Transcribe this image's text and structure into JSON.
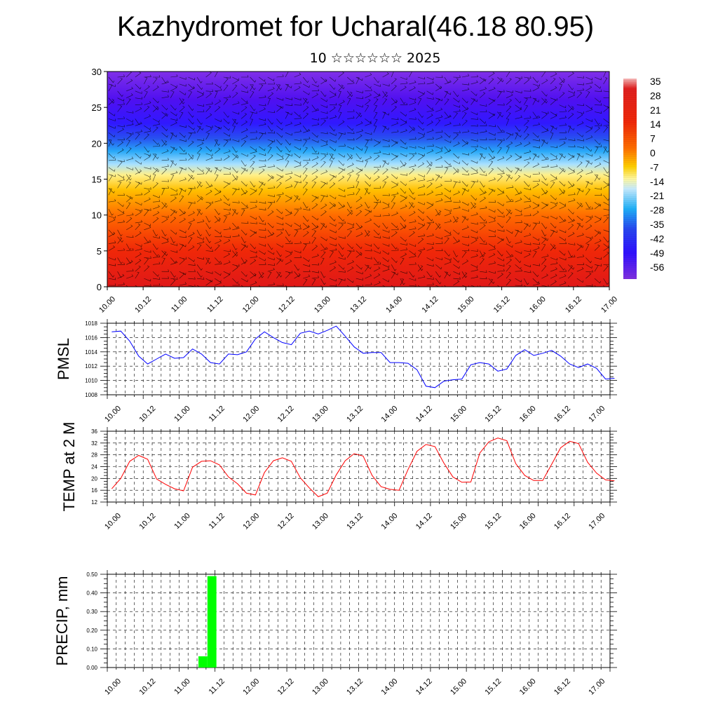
{
  "title": "Kazhydromet for Ucharal(46.18 80.95)",
  "subtitle": "10 ☆☆☆☆☆☆ 2025",
  "colors": {
    "pmsl_line": "#0000ff",
    "temp_line": "#ff0000",
    "precip_bar": "#00ff00",
    "background": "#ffffff"
  },
  "time_ticks": [
    "10.00",
    "10.12",
    "11.00",
    "11.12",
    "12.00",
    "12.12",
    "13.00",
    "13.12",
    "14.00",
    "14.12",
    "15.00",
    "15.12",
    "16.00",
    "16.12",
    "17.00"
  ],
  "chart_data": [
    {
      "type": "heatmap",
      "name": "cross-section",
      "ylim": [
        0,
        30
      ],
      "yticks": [
        0,
        5,
        10,
        15,
        20,
        25,
        30
      ],
      "xlim": [
        0,
        14
      ],
      "colorbar_labels": [
        "35",
        "28",
        "21",
        "14",
        "7",
        "0",
        "-7",
        "-14",
        "-21",
        "-28",
        "-35",
        "-42",
        "-49",
        "-56"
      ],
      "overlay": "wind barbs",
      "level_temperature_profile": [
        {
          "level": 0,
          "value": 30
        },
        {
          "level": 5,
          "value": 22
        },
        {
          "level": 10,
          "value": 10
        },
        {
          "level": 14,
          "value": -5
        },
        {
          "level": 17,
          "value": -20
        },
        {
          "level": 20,
          "value": -40
        },
        {
          "level": 23,
          "value": -58
        },
        {
          "level": 26,
          "value": -60
        },
        {
          "level": 30,
          "value": -50
        }
      ]
    },
    {
      "type": "line",
      "ylabel": "PMSL",
      "ylim": [
        1008,
        1018
      ],
      "yticks": [
        1008,
        1010,
        1012,
        1014,
        1016,
        1018
      ],
      "grid": true,
      "x_step_hours": 3,
      "series": [
        {
          "values": [
            1016.8,
            1016.9,
            1015.5,
            1013.4,
            1012.3,
            1013.0,
            1013.7,
            1013.1,
            1013.2,
            1014.4,
            1013.7,
            1012.5,
            1012.3,
            1013.7,
            1013.6,
            1014.0,
            1015.8,
            1016.8,
            1016.0,
            1015.3,
            1015.0,
            1016.6,
            1016.9,
            1016.5,
            1017.0,
            1017.6,
            1016.2,
            1014.7,
            1013.8,
            1013.9,
            1013.9,
            1012.5,
            1012.5,
            1012.4,
            1011.5,
            1009.2,
            1009.0,
            1009.9,
            1010.1,
            1010.2,
            1012.2,
            1012.5,
            1012.3,
            1011.3,
            1011.6,
            1013.5,
            1014.3,
            1013.5,
            1013.8,
            1014.2,
            1013.4,
            1012.3,
            1011.8,
            1012.3,
            1011.7,
            1010.2,
            1010.3
          ]
        }
      ]
    },
    {
      "type": "line",
      "ylabel": "TEMP at 2 M",
      "ylim": [
        12,
        36
      ],
      "yticks": [
        12,
        16,
        20,
        24,
        28,
        32,
        36
      ],
      "grid": true,
      "x_step_hours": 3,
      "series": [
        {
          "values": [
            16.5,
            20.0,
            25.8,
            27.8,
            26.5,
            19.8,
            18.0,
            16.5,
            15.8,
            23.8,
            25.8,
            26.0,
            24.6,
            20.5,
            18.2,
            15.0,
            14.4,
            22.0,
            26.0,
            27.0,
            25.8,
            20.2,
            16.8,
            13.8,
            15.0,
            21.2,
            26.0,
            28.4,
            27.6,
            21.0,
            17.2,
            16.3,
            16.0,
            23.0,
            29.2,
            31.5,
            30.8,
            25.2,
            20.5,
            18.7,
            18.8,
            28.6,
            32.4,
            33.7,
            32.8,
            25.0,
            21.0,
            19.3,
            19.3,
            24.8,
            30.4,
            32.6,
            31.8,
            25.5,
            21.8,
            19.5,
            19.2
          ]
        }
      ]
    },
    {
      "type": "bar",
      "ylabel": "PRECIP, mm",
      "ylim": [
        0,
        0.5
      ],
      "yticks": [
        "0.00",
        "0.10",
        "0.20",
        "0.30",
        "0.40",
        "0.50"
      ],
      "grid": true,
      "bars": [
        {
          "time_index": 10,
          "value": 0.06
        },
        {
          "time_index": 11,
          "value": 0.49
        }
      ]
    }
  ]
}
